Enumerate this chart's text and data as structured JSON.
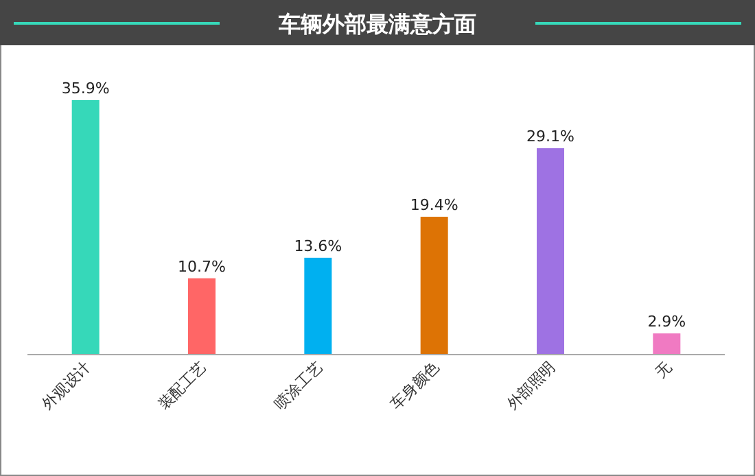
{
  "chart_data": {
    "type": "bar",
    "title": "车辆外部最满意方面",
    "categories": [
      "外观设计",
      "装配工艺",
      "喷涂工艺",
      "车身颜色",
      "外部照明",
      "无"
    ],
    "values": [
      35.9,
      10.7,
      13.6,
      19.4,
      29.1,
      2.9
    ],
    "value_labels": [
      "35.9%",
      "10.7%",
      "13.6%",
      "19.4%",
      "29.1%",
      "2.9%"
    ],
    "colors": [
      "#36d8b9",
      "#ff6666",
      "#00b0f0",
      "#dd7305",
      "#9e72e3",
      "#f07ac2"
    ]
  }
}
